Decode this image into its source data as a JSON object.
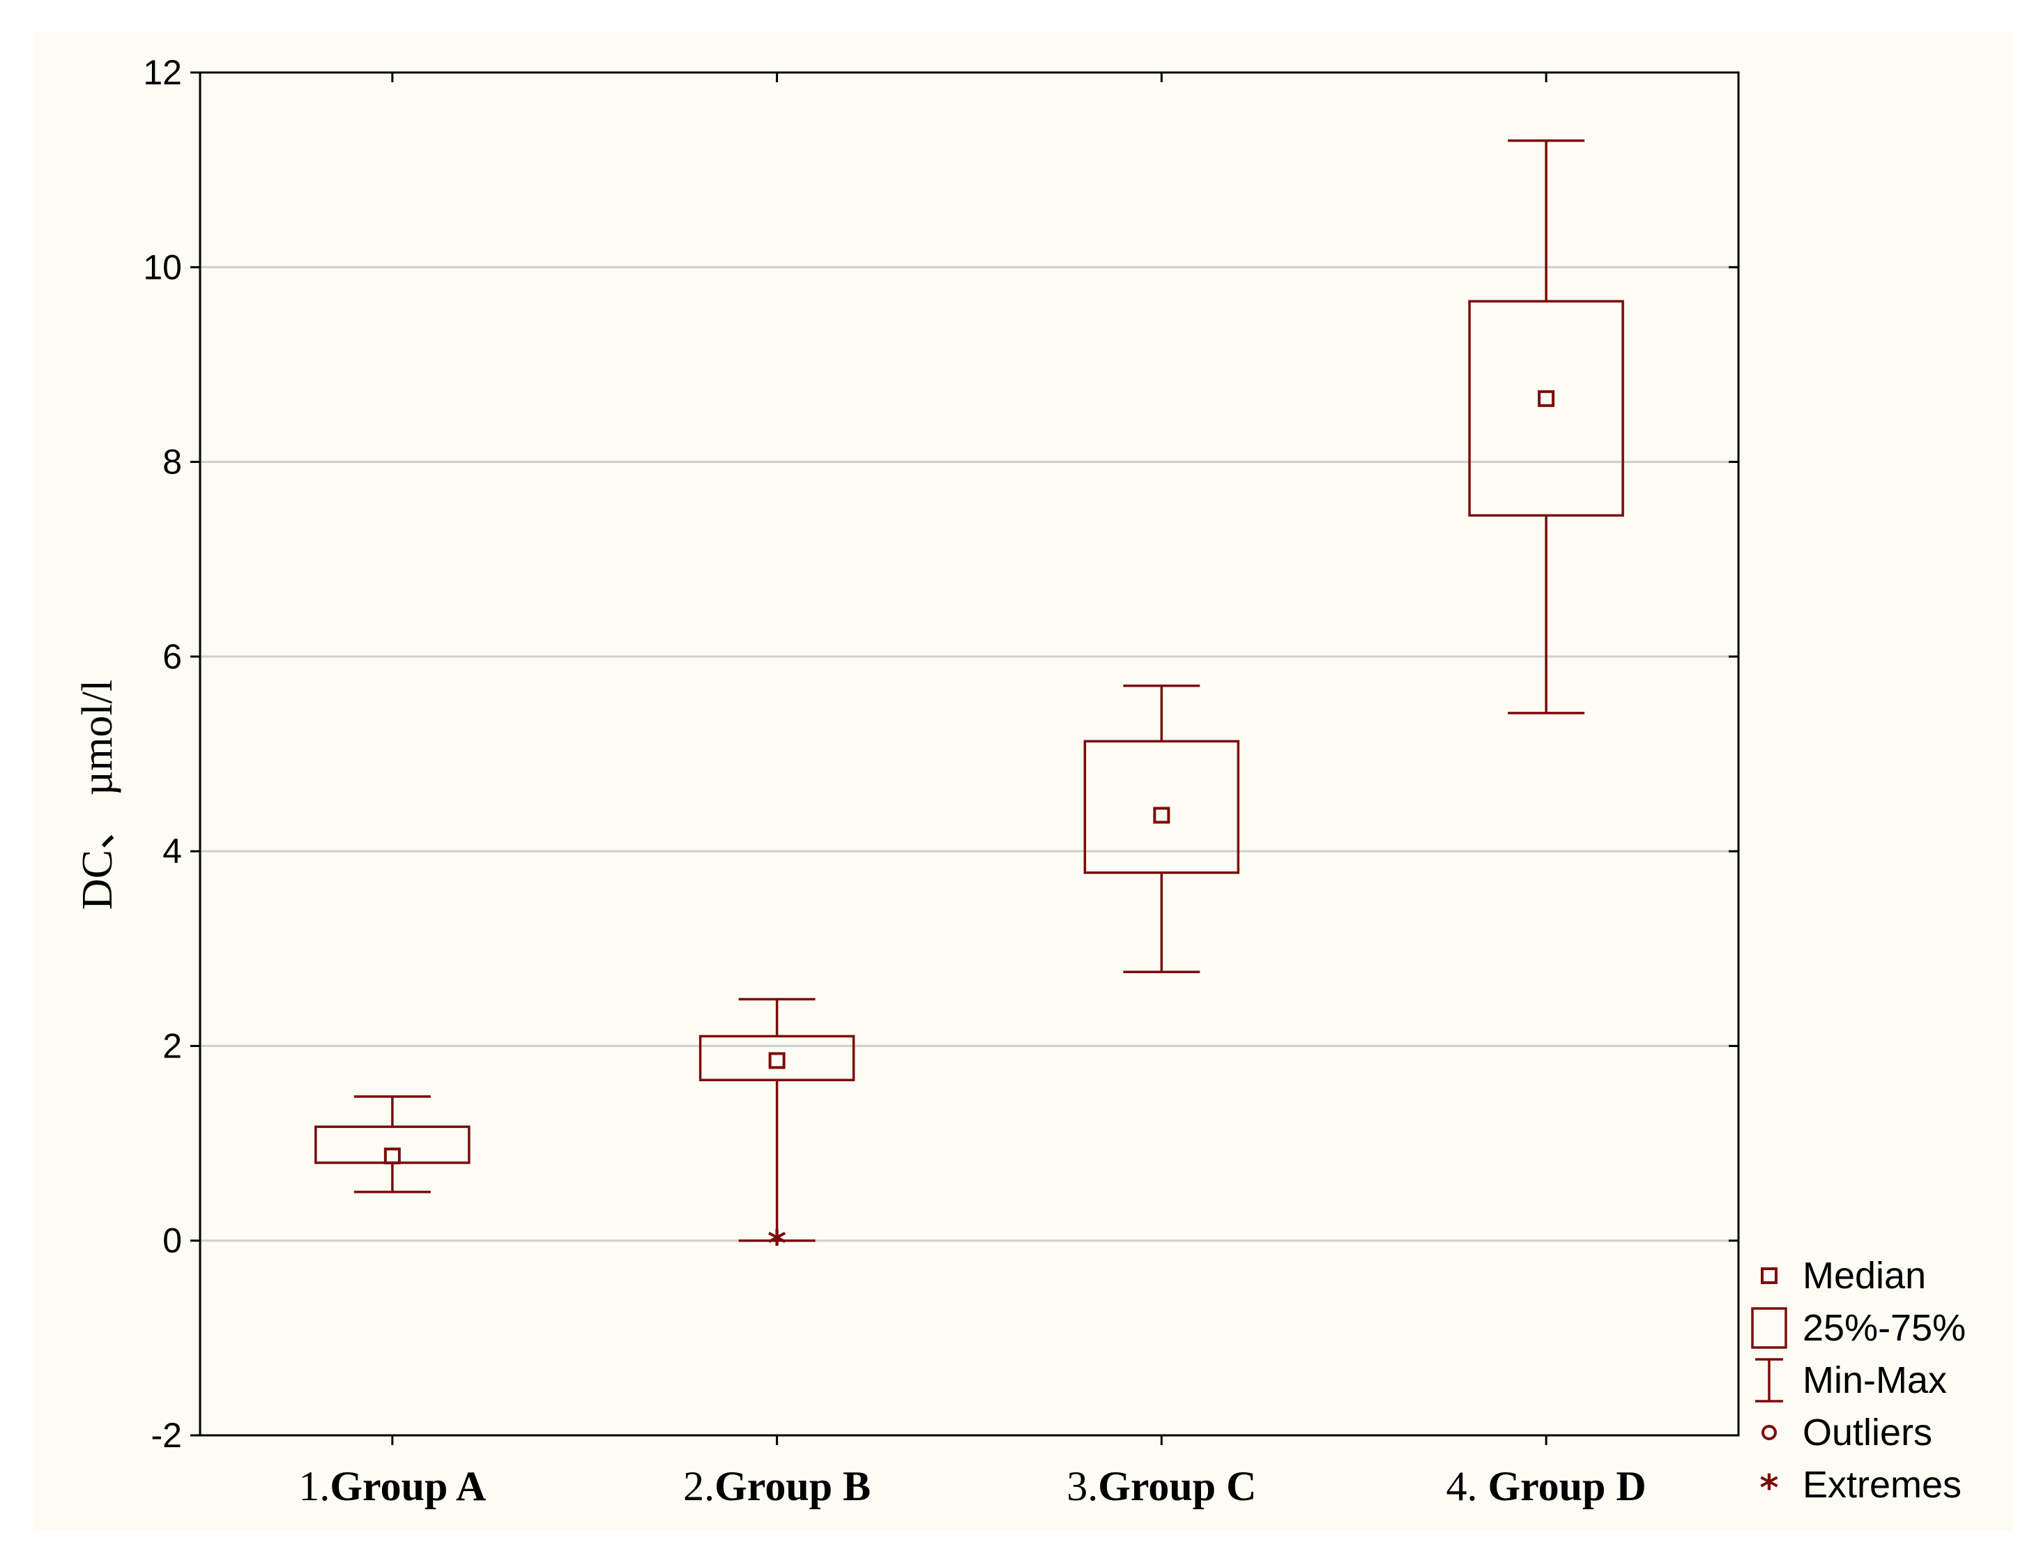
{
  "chart_data": {
    "type": "box",
    "title": "",
    "xlabel": "",
    "ylabel": "DC、 µmol/l",
    "ylim": [
      -2,
      12
    ],
    "yticks": [
      -2,
      0,
      2,
      4,
      6,
      8,
      10,
      12
    ],
    "grid": true,
    "categories": [
      {
        "num": "1.",
        "name": "Group A"
      },
      {
        "num": "2.",
        "name": "Group B"
      },
      {
        "num": "3.",
        "name": "Group C"
      },
      {
        "num": "4. ",
        "name": "Group D"
      }
    ],
    "boxes": [
      {
        "min": 0.5,
        "q1": 0.8,
        "median": 0.87,
        "q3": 1.17,
        "max": 1.48,
        "extremes": []
      },
      {
        "min": 0.0,
        "q1": 1.65,
        "median": 1.85,
        "q3": 2.1,
        "max": 2.48,
        "extremes": [
          0.0
        ]
      },
      {
        "min": 2.76,
        "q1": 3.78,
        "median": 4.37,
        "q3": 5.13,
        "max": 5.7,
        "extremes": []
      },
      {
        "min": 5.42,
        "q1": 7.45,
        "median": 8.65,
        "q3": 9.65,
        "max": 11.3,
        "extremes": []
      }
    ],
    "legend": {
      "position": "bottom-right",
      "items": [
        {
          "symbol": "median",
          "label": "Median"
        },
        {
          "symbol": "box",
          "label": "25%-75%"
        },
        {
          "symbol": "whisker",
          "label": "Min-Max"
        },
        {
          "symbol": "outlier",
          "label": "Outliers"
        },
        {
          "symbol": "extreme",
          "label": "Extremes"
        }
      ]
    },
    "colors": {
      "series": "#7b0c0c",
      "grid": "#cfcfcf",
      "axis": "#000000"
    }
  }
}
